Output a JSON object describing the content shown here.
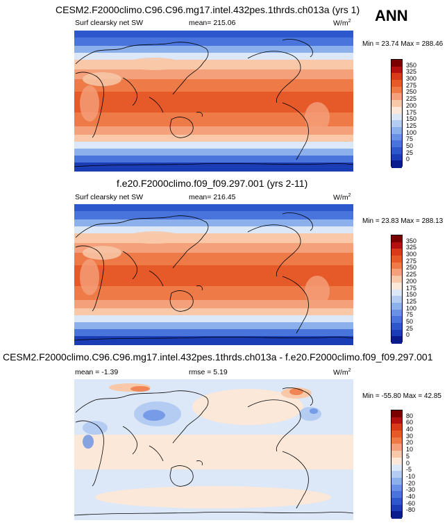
{
  "season": "ANN",
  "panels": [
    {
      "title": "CESM2.F2000climo.C96.C96.mg17.intel.432pes.1thrds.ch013a (yrs 1)",
      "left_label": "Surf clearsky net SW",
      "center_label": "mean= 215.06",
      "units": "W/m",
      "units_sup": "2",
      "minmax": "Min =  23.74 Max = 288.46",
      "colorbar": {
        "labels": [
          "350",
          "325",
          "300",
          "275",
          "250",
          "225",
          "200",
          "175",
          "150",
          "125",
          "100",
          "75",
          "50",
          "25",
          "0"
        ],
        "colors": [
          "#7a0000",
          "#b41010",
          "#d83a1a",
          "#e65a2a",
          "#ee7a48",
          "#f4a07a",
          "#f8c8a8",
          "#fbe8d8",
          "#dce8f8",
          "#b4ccf2",
          "#8cb0ec",
          "#6890e4",
          "#4874dc",
          "#2c58cc",
          "#1a3cb4",
          "#0a1c8c"
        ]
      }
    },
    {
      "title": "f.e20.F2000climo.f09_f09.297.001 (yrs 2-11)",
      "left_label": "Surf clearsky net SW",
      "center_label": "mean= 216.45",
      "units": "W/m",
      "units_sup": "2",
      "minmax": "Min =  23.83 Max = 288.13",
      "colorbar": {
        "labels": [
          "350",
          "325",
          "300",
          "275",
          "250",
          "225",
          "200",
          "175",
          "150",
          "125",
          "100",
          "75",
          "50",
          "25",
          "0"
        ],
        "colors": [
          "#7a0000",
          "#b41010",
          "#d83a1a",
          "#e65a2a",
          "#ee7a48",
          "#f4a07a",
          "#f8c8a8",
          "#fbe8d8",
          "#dce8f8",
          "#b4ccf2",
          "#8cb0ec",
          "#6890e4",
          "#4874dc",
          "#2c58cc",
          "#1a3cb4",
          "#0a1c8c"
        ]
      }
    },
    {
      "title": "CESM2.F2000climo.C96.C96.mg17.intel.432pes.1thrds.ch013a - f.e20.F2000climo.f09_f09.297.001",
      "left_label": "mean =  -1.39",
      "center_label": "rmse =  5.19",
      "units": "W/m",
      "units_sup": "2",
      "minmax": "Min = -55.80 Max =  42.85",
      "colorbar": {
        "labels": [
          "80",
          "60",
          "40",
          "30",
          "20",
          "10",
          "5",
          "0",
          "-5",
          "-10",
          "-20",
          "-30",
          "-40",
          "-60",
          "-80"
        ],
        "colors": [
          "#7a0000",
          "#b41010",
          "#d83a1a",
          "#e65a2a",
          "#ee7a48",
          "#f4a07a",
          "#f8c8a8",
          "#fbe8d8",
          "#dce8f8",
          "#b4ccf2",
          "#8cb0ec",
          "#6890e4",
          "#4874dc",
          "#2c58cc",
          "#1a3cb4",
          "#0a1c8c"
        ]
      }
    }
  ]
}
